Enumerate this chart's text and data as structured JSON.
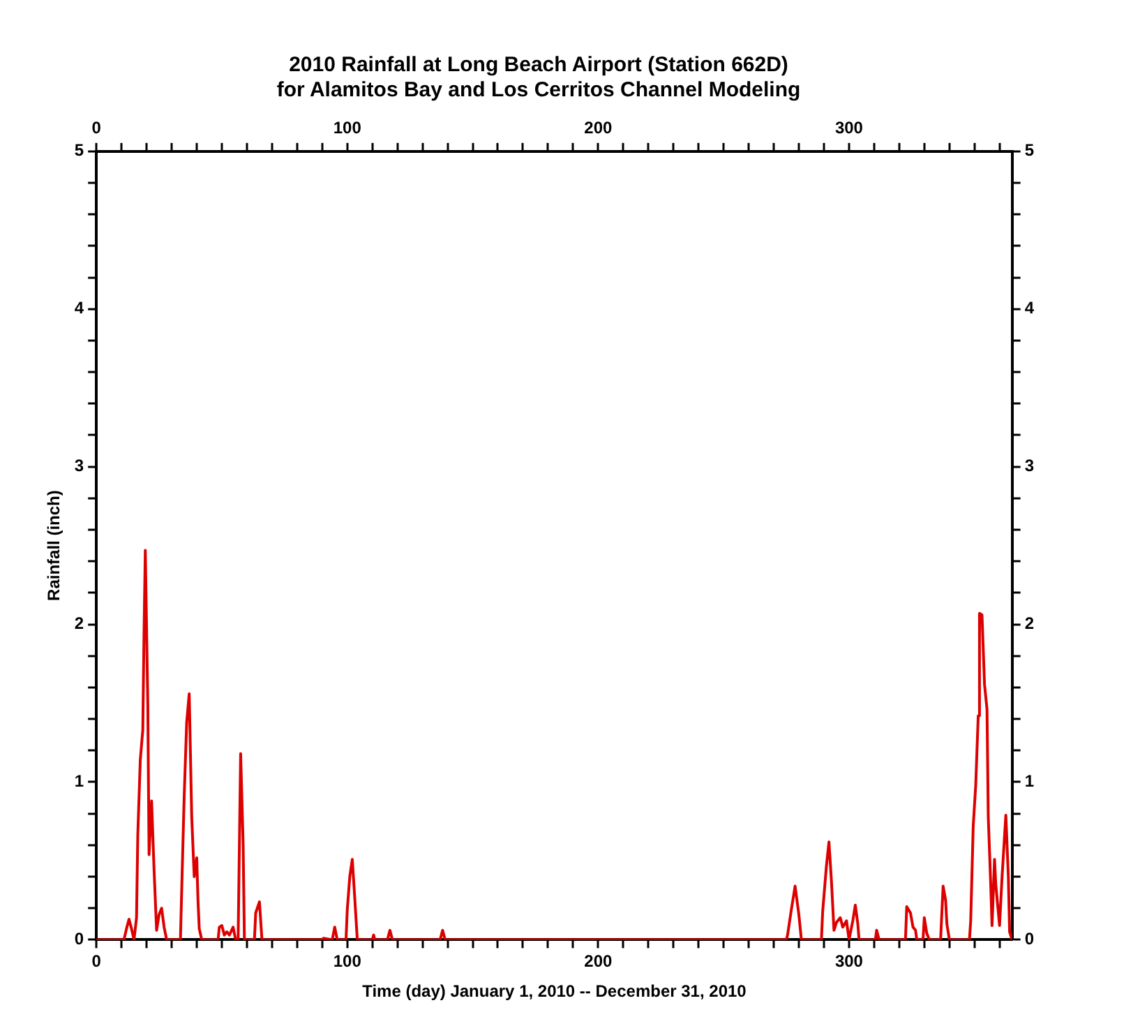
{
  "chart_data": {
    "type": "line",
    "title": "2010 Rainfall at Long Beach Airport (Station 662D)",
    "subtitle": "for Alamitos Bay and Los Cerritos Channel Modeling",
    "xlabel": "Time (day) January 1, 2010 -- December 31, 2010",
    "ylabel": "Rainfall (inch)",
    "series": [
      {
        "color": "#dd0000",
        "x": [
          0,
          11,
          12,
          13,
          14,
          15,
          16,
          16.5,
          17.5,
          18.5,
          19,
          19.5,
          20.5,
          21,
          22,
          23,
          24,
          25,
          26,
          27,
          28,
          33.5,
          34,
          35,
          36,
          37,
          38,
          39,
          40,
          40.5,
          41,
          42,
          48.5,
          49,
          50,
          51,
          52,
          53,
          54.5,
          55.5,
          56.5,
          57,
          57.5,
          58.5,
          59,
          63,
          63.5,
          65,
          65.5,
          66,
          90,
          90.5,
          94,
          95,
          96,
          99.5,
          100,
          101,
          102,
          103,
          104,
          110,
          110.5,
          111,
          116,
          117,
          118,
          137,
          138,
          139,
          275,
          275.5,
          277,
          278.5,
          280,
          281,
          289,
          289.5,
          291,
          292,
          293,
          294,
          295,
          296.5,
          297.5,
          299,
          300,
          301.5,
          302.5,
          303.5,
          304,
          310.5,
          311,
          312,
          322.5,
          323,
          324.5,
          325.5,
          326.5,
          327,
          329.5,
          330,
          331,
          332,
          336.5,
          337.5,
          338.5,
          339,
          340,
          348,
          348.5,
          349.5,
          350.5,
          351.5,
          352,
          353,
          354,
          355,
          355.5,
          356.5,
          357,
          358,
          358.5,
          360,
          361,
          362.5,
          363.5,
          364,
          365
        ],
        "values": [
          0,
          0,
          0.07,
          0.13,
          0.07,
          0,
          0.14,
          0.66,
          1.14,
          1.33,
          1.96,
          2.47,
          1.49,
          0.54,
          0.88,
          0.44,
          0.06,
          0.16,
          0.2,
          0.08,
          0,
          0,
          0.31,
          0.91,
          1.38,
          1.56,
          0.78,
          0.4,
          0.52,
          0.25,
          0.07,
          0,
          0,
          0.08,
          0.09,
          0.03,
          0.05,
          0.03,
          0.08,
          0,
          0,
          0.6,
          1.18,
          0.6,
          0,
          0,
          0.17,
          0.24,
          0.12,
          0,
          0,
          0.01,
          0,
          0.08,
          0,
          0,
          0.19,
          0.4,
          0.51,
          0.26,
          0,
          0,
          0.03,
          0,
          0,
          0.06,
          0,
          0,
          0.06,
          0,
          0,
          0.03,
          0.19,
          0.34,
          0.16,
          0,
          0,
          0.18,
          0.47,
          0.62,
          0.37,
          0.06,
          0.11,
          0.14,
          0.08,
          0.12,
          0,
          0.12,
          0.22,
          0.1,
          0,
          0,
          0.06,
          0,
          0,
          0.21,
          0.17,
          0.08,
          0.06,
          0,
          0,
          0.14,
          0.04,
          0,
          0,
          0.34,
          0.25,
          0.1,
          0,
          0,
          0.12,
          0.72,
          0.98,
          1.42,
          2.07,
          2.06,
          1.62,
          1.46,
          0.78,
          0.34,
          0.09,
          0.51,
          0.35,
          0.09,
          0.4,
          0.79,
          0.4,
          0.05,
          0
        ]
      }
    ],
    "xlim": [
      0,
      365
    ],
    "xticks": [
      0,
      {
        "value": 10,
        "label": null
      },
      {
        "value": 20,
        "label": null
      },
      {
        "value": 30,
        "label": null
      },
      {
        "value": 40,
        "label": null
      },
      {
        "value": 50,
        "label": null
      },
      {
        "value": 60,
        "label": null
      },
      {
        "value": 70,
        "label": null
      },
      {
        "value": 80,
        "label": null
      },
      {
        "value": 90,
        "label": null
      },
      100,
      {
        "value": 110,
        "label": null
      },
      {
        "value": 120,
        "label": null
      },
      {
        "value": 130,
        "label": null
      },
      {
        "value": 140,
        "label": null
      },
      {
        "value": 150,
        "label": null
      },
      {
        "value": 160,
        "label": null
      },
      {
        "value": 170,
        "label": null
      },
      {
        "value": 180,
        "label": null
      },
      {
        "value": 190,
        "label": null
      },
      200,
      {
        "value": 210,
        "label": null
      },
      {
        "value": 220,
        "label": null
      },
      {
        "value": 230,
        "label": null
      },
      {
        "value": 240,
        "label": null
      },
      {
        "value": 250,
        "label": null
      },
      {
        "value": 260,
        "label": null
      },
      {
        "value": 270,
        "label": null
      },
      {
        "value": 280,
        "label": null
      },
      {
        "value": 290,
        "label": null
      },
      300,
      {
        "value": 310,
        "label": null
      },
      {
        "value": 320,
        "label": null
      },
      {
        "value": 330,
        "label": null
      },
      {
        "value": 340,
        "label": null
      },
      {
        "value": 350,
        "label": null
      },
      {
        "value": 360,
        "label": null
      }
    ],
    "x2lim": [
      0,
      365
    ],
    "x2ticks": [
      0,
      {
        "value": 10,
        "label": null
      },
      {
        "value": 20,
        "label": null
      },
      {
        "value": 30,
        "label": null
      },
      {
        "value": 40,
        "label": null
      },
      {
        "value": 50,
        "label": null
      },
      {
        "value": 60,
        "label": null
      },
      {
        "value": 70,
        "label": null
      },
      {
        "value": 80,
        "label": null
      },
      {
        "value": 90,
        "label": null
      },
      100,
      {
        "value": 110,
        "label": null
      },
      {
        "value": 120,
        "label": null
      },
      {
        "value": 130,
        "label": null
      },
      {
        "value": 140,
        "label": null
      },
      {
        "value": 150,
        "label": null
      },
      {
        "value": 160,
        "label": null
      },
      {
        "value": 170,
        "label": null
      },
      {
        "value": 180,
        "label": null
      },
      {
        "value": 190,
        "label": null
      },
      200,
      {
        "value": 210,
        "label": null
      },
      {
        "value": 220,
        "label": null
      },
      {
        "value": 230,
        "label": null
      },
      {
        "value": 240,
        "label": null
      },
      {
        "value": 250,
        "label": null
      },
      {
        "value": 260,
        "label": null
      },
      {
        "value": 270,
        "label": null
      },
      {
        "value": 280,
        "label": null
      },
      {
        "value": 290,
        "label": null
      },
      300,
      {
        "value": 310,
        "label": null
      },
      {
        "value": 320,
        "label": null
      },
      {
        "value": 330,
        "label": null
      },
      {
        "value": 340,
        "label": null
      },
      {
        "value": 350,
        "label": null
      },
      {
        "value": 360,
        "label": null
      }
    ],
    "ylim": [
      0,
      5
    ],
    "yticks": [
      0,
      {
        "value": 0.2,
        "label": null
      },
      {
        "value": 0.4,
        "label": null
      },
      {
        "value": 0.6,
        "label": null
      },
      {
        "value": 0.8,
        "label": null
      },
      1,
      {
        "value": 1.2,
        "label": null
      },
      {
        "value": 1.4,
        "label": null
      },
      {
        "value": 1.6,
        "label": null
      },
      {
        "value": 1.8,
        "label": null
      },
      2,
      {
        "value": 2.2,
        "label": null
      },
      {
        "value": 2.4,
        "label": null
      },
      {
        "value": 2.6,
        "label": null
      },
      {
        "value": 2.8,
        "label": null
      },
      3,
      {
        "value": 3.2,
        "label": null
      },
      {
        "value": 3.4,
        "label": null
      },
      {
        "value": 3.6,
        "label": null
      },
      {
        "value": 3.8,
        "label": null
      },
      4,
      {
        "value": 4.2,
        "label": null
      },
      {
        "value": 4.4,
        "label": null
      },
      {
        "value": 4.6,
        "label": null
      },
      {
        "value": 4.8,
        "label": null
      },
      5
    ],
    "y2lim": [
      0,
      5
    ],
    "y2ticks": [
      0,
      {
        "value": 0.2,
        "label": null
      },
      {
        "value": 0.4,
        "label": null
      },
      {
        "value": 0.6,
        "label": null
      },
      {
        "value": 0.8,
        "label": null
      },
      1,
      {
        "value": 1.2,
        "label": null
      },
      {
        "value": 1.4,
        "label": null
      },
      {
        "value": 1.6,
        "label": null
      },
      {
        "value": 1.8,
        "label": null
      },
      2,
      {
        "value": 2.2,
        "label": null
      },
      {
        "value": 2.4,
        "label": null
      },
      {
        "value": 2.6,
        "label": null
      },
      {
        "value": 2.8,
        "label": null
      },
      3,
      {
        "value": 3.2,
        "label": null
      },
      {
        "value": 3.4,
        "label": null
      },
      {
        "value": 3.6,
        "label": null
      },
      {
        "value": 3.8,
        "label": null
      },
      4,
      {
        "value": 4.2,
        "label": null
      },
      {
        "value": 4.4,
        "label": null
      },
      {
        "value": 4.6,
        "label": null
      },
      {
        "value": 4.8,
        "label": null
      },
      5
    ],
    "grid": false,
    "legend": false,
    "marker": "none",
    "line_style": "solid"
  }
}
